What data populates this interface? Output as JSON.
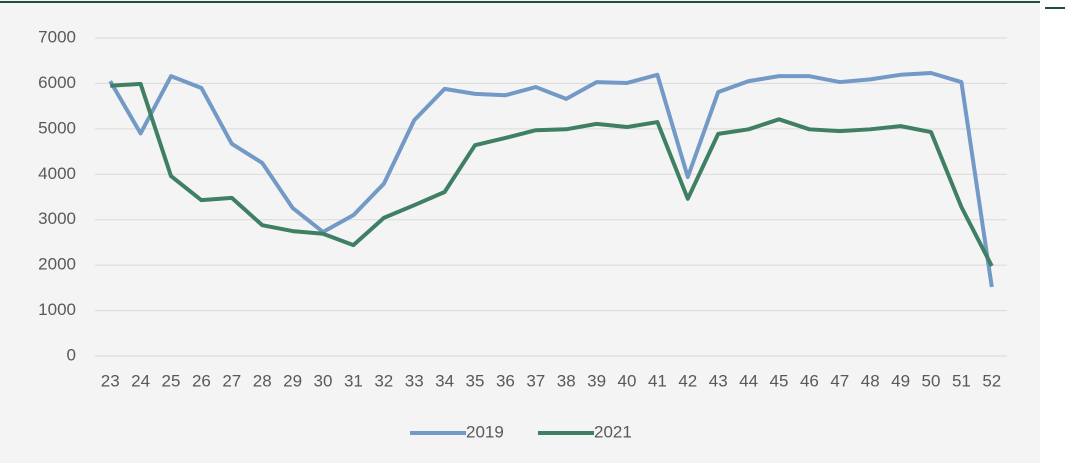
{
  "chart_data": {
    "type": "line",
    "categories": [
      "23",
      "24",
      "25",
      "26",
      "27",
      "28",
      "29",
      "30",
      "31",
      "32",
      "33",
      "34",
      "35",
      "36",
      "37",
      "38",
      "39",
      "40",
      "41",
      "42",
      "43",
      "44",
      "45",
      "46",
      "47",
      "48",
      "49",
      "50",
      "51",
      "52"
    ],
    "series": [
      {
        "name": "2019",
        "color": "#7399c6",
        "values": [
          6050,
          4900,
          6160,
          5900,
          4670,
          4250,
          3260,
          2730,
          3100,
          3790,
          5190,
          5880,
          5770,
          5740,
          5920,
          5660,
          6030,
          6010,
          6190,
          3940,
          5810,
          6050,
          6160,
          6160,
          6030,
          6090,
          6190,
          6230,
          6030,
          1520
        ]
      },
      {
        "name": "2021",
        "color": "#3f7f63",
        "values": [
          5950,
          5990,
          3960,
          3430,
          3480,
          2880,
          2750,
          2690,
          2440,
          3040,
          3320,
          3610,
          4640,
          4800,
          4970,
          4990,
          5110,
          5040,
          5150,
          3460,
          4890,
          4990,
          5210,
          4990,
          4950,
          4990,
          5060,
          4930,
          3280,
          1980
        ]
      }
    ],
    "ylim": [
      0,
      7000
    ],
    "yticks": [
      0,
      1000,
      2000,
      3000,
      4000,
      5000,
      6000,
      7000
    ],
    "grid": true,
    "legend": "bottom"
  }
}
